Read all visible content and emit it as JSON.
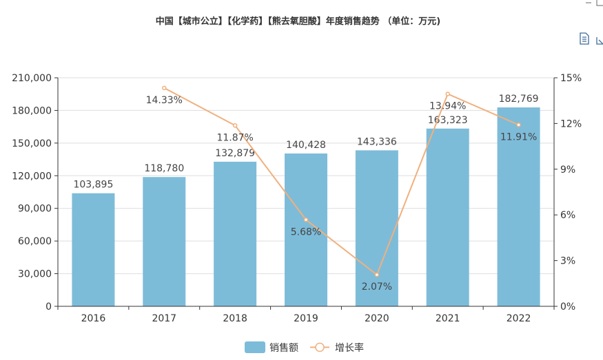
{
  "chart_data": {
    "type": "bar",
    "title": "中国【城市公立】【化学药】【熊去氧胆酸】年度销售趋势 （单位：万元)",
    "categories": [
      "2016",
      "2017",
      "2018",
      "2019",
      "2020",
      "2021",
      "2022"
    ],
    "series": [
      {
        "name": "销售额",
        "type": "bar",
        "axis": "left",
        "color": "#7dbcd9",
        "values": [
          103895,
          118780,
          132879,
          140428,
          143336,
          163323,
          182769
        ],
        "labels": [
          "103,895",
          "118,780",
          "132,879",
          "140,428",
          "143,336",
          "163,323",
          "182,769"
        ]
      },
      {
        "name": "增长率",
        "type": "line",
        "axis": "right",
        "color": "#f0b07d",
        "values": [
          null,
          14.33,
          11.87,
          5.68,
          2.07,
          13.94,
          11.91
        ],
        "labels": [
          "",
          "14.33%",
          "11.87%",
          "5.68%",
          "2.07%",
          "13.94%",
          "11.91%"
        ]
      }
    ],
    "yleft": {
      "ylim": [
        0,
        210000
      ],
      "ticks": [
        "0",
        "30,000",
        "60,000",
        "90,000",
        "120,000",
        "150,000",
        "180,000",
        "210,000"
      ]
    },
    "yright": {
      "ylim": [
        0,
        15
      ],
      "ticks": [
        "0%",
        "3%",
        "6%",
        "9%",
        "12%",
        "15%"
      ]
    },
    "grid": true,
    "legend": "bottom"
  },
  "toolbox": {
    "icons": [
      "data-view-icon",
      "save-image-icon"
    ]
  }
}
